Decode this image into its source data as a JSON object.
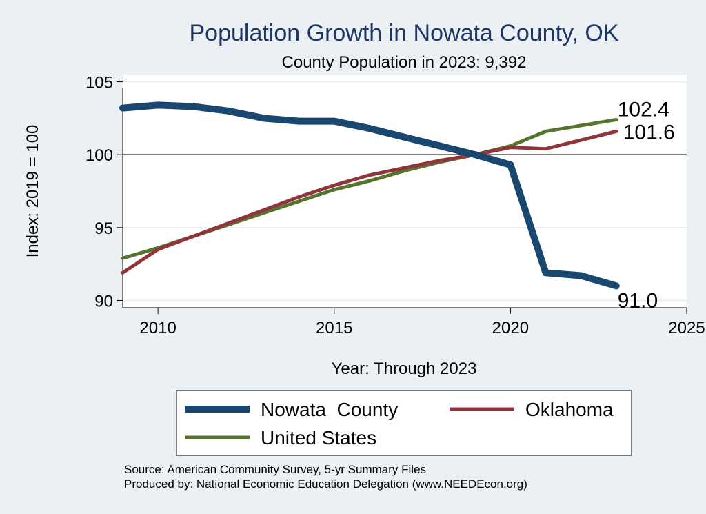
{
  "chart_data": {
    "type": "line",
    "title": "Population Growth in Nowata County, OK",
    "subtitle": "County Population in 2023: 9,392",
    "xlabel": "Year: Through 2023",
    "ylabel": "Index: 2019 = 100",
    "xlim": [
      2009,
      2025
    ],
    "ylim": [
      89.5,
      105.5
    ],
    "xticks": [
      2010,
      2015,
      2020,
      2025
    ],
    "yticks": [
      90,
      95,
      100,
      105
    ],
    "reference_line": 100,
    "x": [
      2009,
      2010,
      2011,
      2012,
      2013,
      2014,
      2015,
      2016,
      2017,
      2018,
      2019,
      2020,
      2021,
      2022,
      2023
    ],
    "series": [
      {
        "name": "Nowata  County",
        "color": "#1a476f",
        "values": [
          103.2,
          103.4,
          103.3,
          103.0,
          102.5,
          102.3,
          102.3,
          101.8,
          101.2,
          100.6,
          100.0,
          99.3,
          91.9,
          91.7,
          91.0
        ],
        "end_label": "91.0"
      },
      {
        "name": "Oklahoma",
        "color": "#90353b",
        "values": [
          91.9,
          93.5,
          94.4,
          95.3,
          96.2,
          97.1,
          97.9,
          98.6,
          99.1,
          99.6,
          100.0,
          100.5,
          100.4,
          101.0,
          101.6
        ],
        "end_label": "101.6"
      },
      {
        "name": "United States",
        "color": "#55752f",
        "values": [
          92.9,
          93.6,
          94.4,
          95.2,
          96.0,
          96.8,
          97.6,
          98.2,
          98.9,
          99.5,
          100.0,
          100.6,
          101.6,
          102.0,
          102.4
        ],
        "end_label": "102.4"
      }
    ],
    "legend": {
      "position": "bottom",
      "entries": [
        "Nowata  County",
        "Oklahoma",
        "United States"
      ]
    },
    "grid": true
  },
  "footer": {
    "source": "Source: American Community Survey, 5-yr Summary Files",
    "produced_by": "Produced by: National Economic Education Delegation (www.NEEDEcon.org)"
  }
}
